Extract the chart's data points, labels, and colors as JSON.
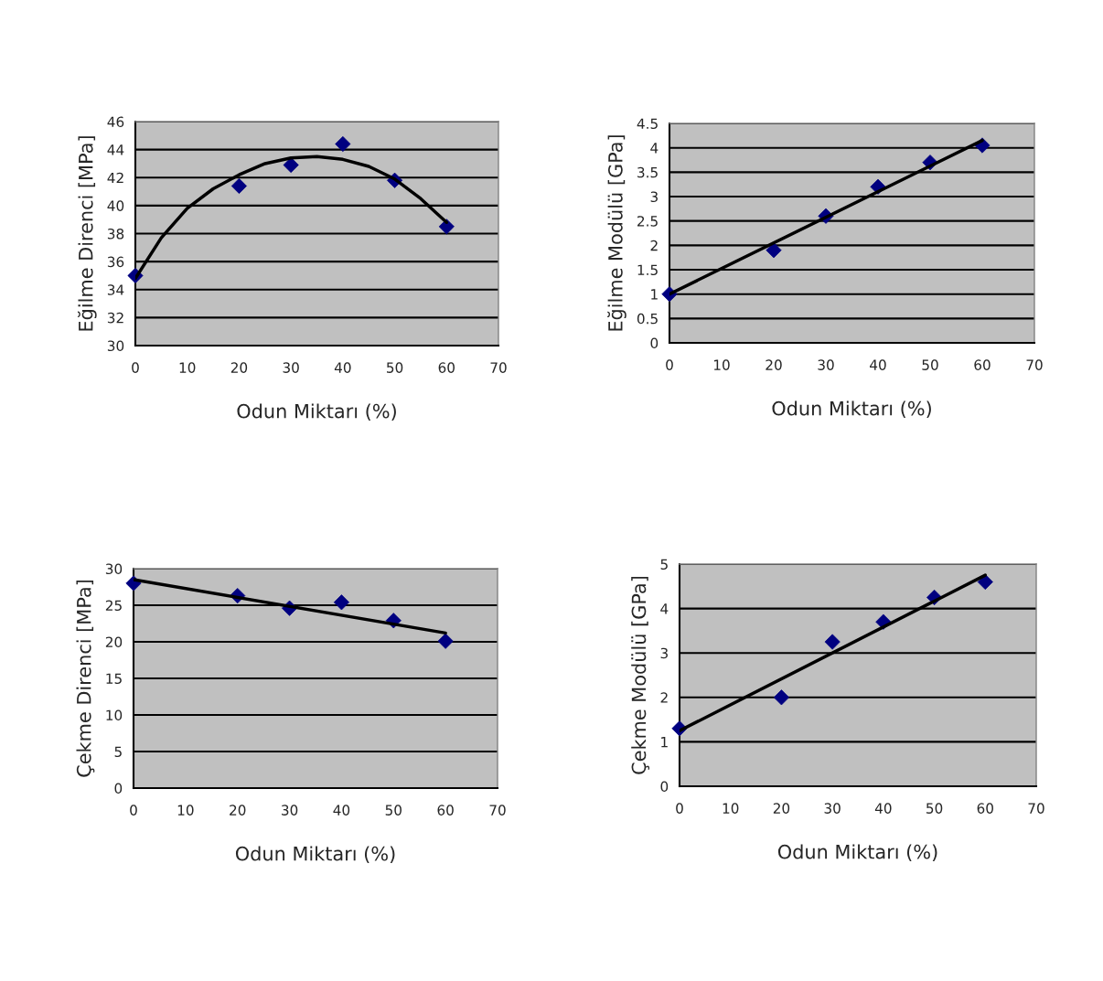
{
  "chart_data": [
    {
      "type": "scatter",
      "xlabel": "Odun Miktarı (%)",
      "ylabel": "Eğilme Direnci [MPa]",
      "xlim": [
        0,
        70
      ],
      "xticks": [
        0,
        10,
        20,
        30,
        40,
        50,
        60,
        70
      ],
      "ylim": [
        30,
        46
      ],
      "yticks": [
        30,
        32,
        34,
        36,
        38,
        40,
        42,
        44,
        46
      ],
      "grid": "y",
      "legend": false,
      "series": [
        {
          "color": "#000080",
          "marker": "diamond",
          "x": [
            0,
            20,
            30,
            40,
            50,
            60
          ],
          "values": [
            35,
            41.4,
            42.9,
            44.4,
            41.8,
            38.5
          ]
        },
        {
          "type": "line",
          "color": "#000000",
          "marker": "none",
          "line_style": "solid",
          "x": [
            0,
            5,
            10,
            15,
            20,
            25,
            30,
            35,
            40,
            45,
            50,
            55,
            60
          ],
          "values": [
            34.8,
            37.7,
            39.8,
            41.2,
            42.2,
            43.0,
            43.4,
            43.5,
            43.3,
            42.8,
            41.9,
            40.5,
            38.8
          ]
        }
      ]
    },
    {
      "type": "scatter",
      "xlabel": "Odun Miktarı (%)",
      "ylabel": "Eğilme Modülü [GPa]",
      "xlim": [
        0,
        70
      ],
      "xticks": [
        0,
        10,
        20,
        30,
        40,
        50,
        60,
        70
      ],
      "ylim": [
        0,
        4.5
      ],
      "yticks": [
        0,
        0.5,
        1,
        1.5,
        2,
        2.5,
        3,
        3.5,
        4,
        4.5
      ],
      "grid": "y",
      "legend": false,
      "series": [
        {
          "color": "#000080",
          "marker": "diamond",
          "x": [
            0,
            20,
            30,
            40,
            50,
            60
          ],
          "values": [
            1.0,
            1.9,
            2.6,
            3.2,
            3.7,
            4.05
          ]
        },
        {
          "type": "line",
          "color": "#000000",
          "marker": "none",
          "line_style": "solid",
          "x": [
            0,
            60
          ],
          "values": [
            1.0,
            4.15
          ]
        }
      ]
    },
    {
      "type": "scatter",
      "xlabel": "Odun Miktarı (%)",
      "ylabel": "Çekme Direnci [MPa]",
      "xlim": [
        0,
        70
      ],
      "xticks": [
        0,
        10,
        20,
        30,
        40,
        50,
        60,
        70
      ],
      "ylim": [
        0,
        30
      ],
      "yticks": [
        0,
        5,
        10,
        15,
        20,
        25,
        30
      ],
      "grid": "y",
      "legend": false,
      "series": [
        {
          "color": "#000080",
          "marker": "diamond",
          "x": [
            0,
            20,
            30,
            40,
            50,
            60
          ],
          "values": [
            28,
            26.3,
            24.6,
            25.4,
            22.9,
            20.1
          ]
        },
        {
          "type": "line",
          "color": "#000000",
          "marker": "none",
          "line_style": "solid",
          "x": [
            0,
            60
          ],
          "values": [
            28.5,
            21.2
          ]
        }
      ]
    },
    {
      "type": "scatter",
      "xlabel": "Odun Miktarı (%)",
      "ylabel": "Çekme Modülü [GPa]",
      "xlim": [
        0,
        70
      ],
      "xticks": [
        0,
        10,
        20,
        30,
        40,
        50,
        60,
        70
      ],
      "ylim": [
        0,
        5
      ],
      "yticks": [
        0,
        1,
        2,
        3,
        4,
        5
      ],
      "grid": "y",
      "legend": false,
      "series": [
        {
          "color": "#000080",
          "marker": "diamond",
          "x": [
            0,
            20,
            30,
            40,
            50,
            60
          ],
          "values": [
            1.3,
            2.0,
            3.25,
            3.7,
            4.25,
            4.6
          ]
        },
        {
          "type": "line",
          "color": "#000000",
          "marker": "none",
          "line_style": "solid",
          "x": [
            0,
            60
          ],
          "values": [
            1.25,
            4.75
          ]
        }
      ]
    }
  ]
}
